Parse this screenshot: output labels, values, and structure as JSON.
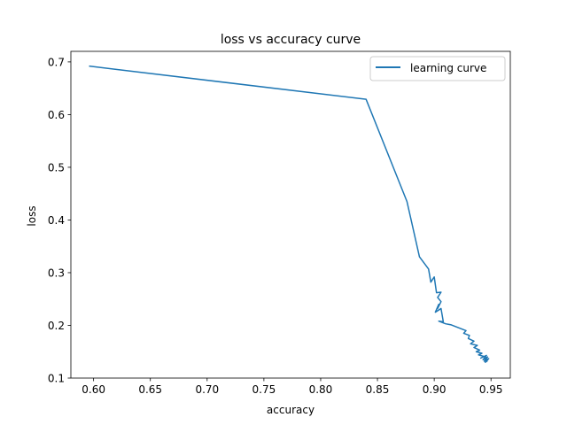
{
  "figure": {
    "background": "#ffffff"
  },
  "chart_data": {
    "type": "line",
    "title": "loss vs accuracy curve",
    "xlabel": "accuracy",
    "ylabel": "loss",
    "xlim": [
      0.58,
      0.967
    ],
    "ylim": [
      0.1,
      0.72
    ],
    "xticks": [
      0.6,
      0.65,
      0.7,
      0.75,
      0.8,
      0.85,
      0.9,
      0.95
    ],
    "xtick_labels": [
      "0.60",
      "0.65",
      "0.70",
      "0.75",
      "0.80",
      "0.85",
      "0.90",
      "0.95"
    ],
    "yticks": [
      0.1,
      0.2,
      0.3,
      0.4,
      0.5,
      0.6,
      0.7
    ],
    "ytick_labels": [
      "0.1",
      "0.2",
      "0.3",
      "0.4",
      "0.5",
      "0.6",
      "0.7"
    ],
    "grid": false,
    "legend": {
      "position": "upper right",
      "entries": [
        "learning curve"
      ]
    },
    "series": [
      {
        "name": "learning curve",
        "color": "#1f77b4",
        "x": [
          0.596,
          0.84,
          0.876,
          0.887,
          0.895,
          0.897,
          0.9,
          0.902,
          0.906,
          0.903,
          0.906,
          0.903,
          0.904,
          0.901,
          0.906,
          0.908,
          0.904,
          0.91,
          0.915,
          0.922,
          0.928,
          0.926,
          0.931,
          0.93,
          0.935,
          0.932,
          0.938,
          0.935,
          0.94,
          0.937,
          0.942,
          0.939,
          0.944,
          0.941,
          0.946,
          0.943,
          0.947,
          0.944,
          0.948,
          0.945,
          0.947
        ],
        "y": [
          0.692,
          0.629,
          0.435,
          0.33,
          0.307,
          0.282,
          0.292,
          0.262,
          0.263,
          0.253,
          0.245,
          0.232,
          0.24,
          0.225,
          0.232,
          0.207,
          0.208,
          0.203,
          0.201,
          0.195,
          0.19,
          0.185,
          0.181,
          0.175,
          0.17,
          0.165,
          0.162,
          0.158,
          0.153,
          0.15,
          0.147,
          0.144,
          0.141,
          0.138,
          0.143,
          0.135,
          0.14,
          0.132,
          0.137,
          0.13,
          0.133
        ]
      }
    ]
  }
}
